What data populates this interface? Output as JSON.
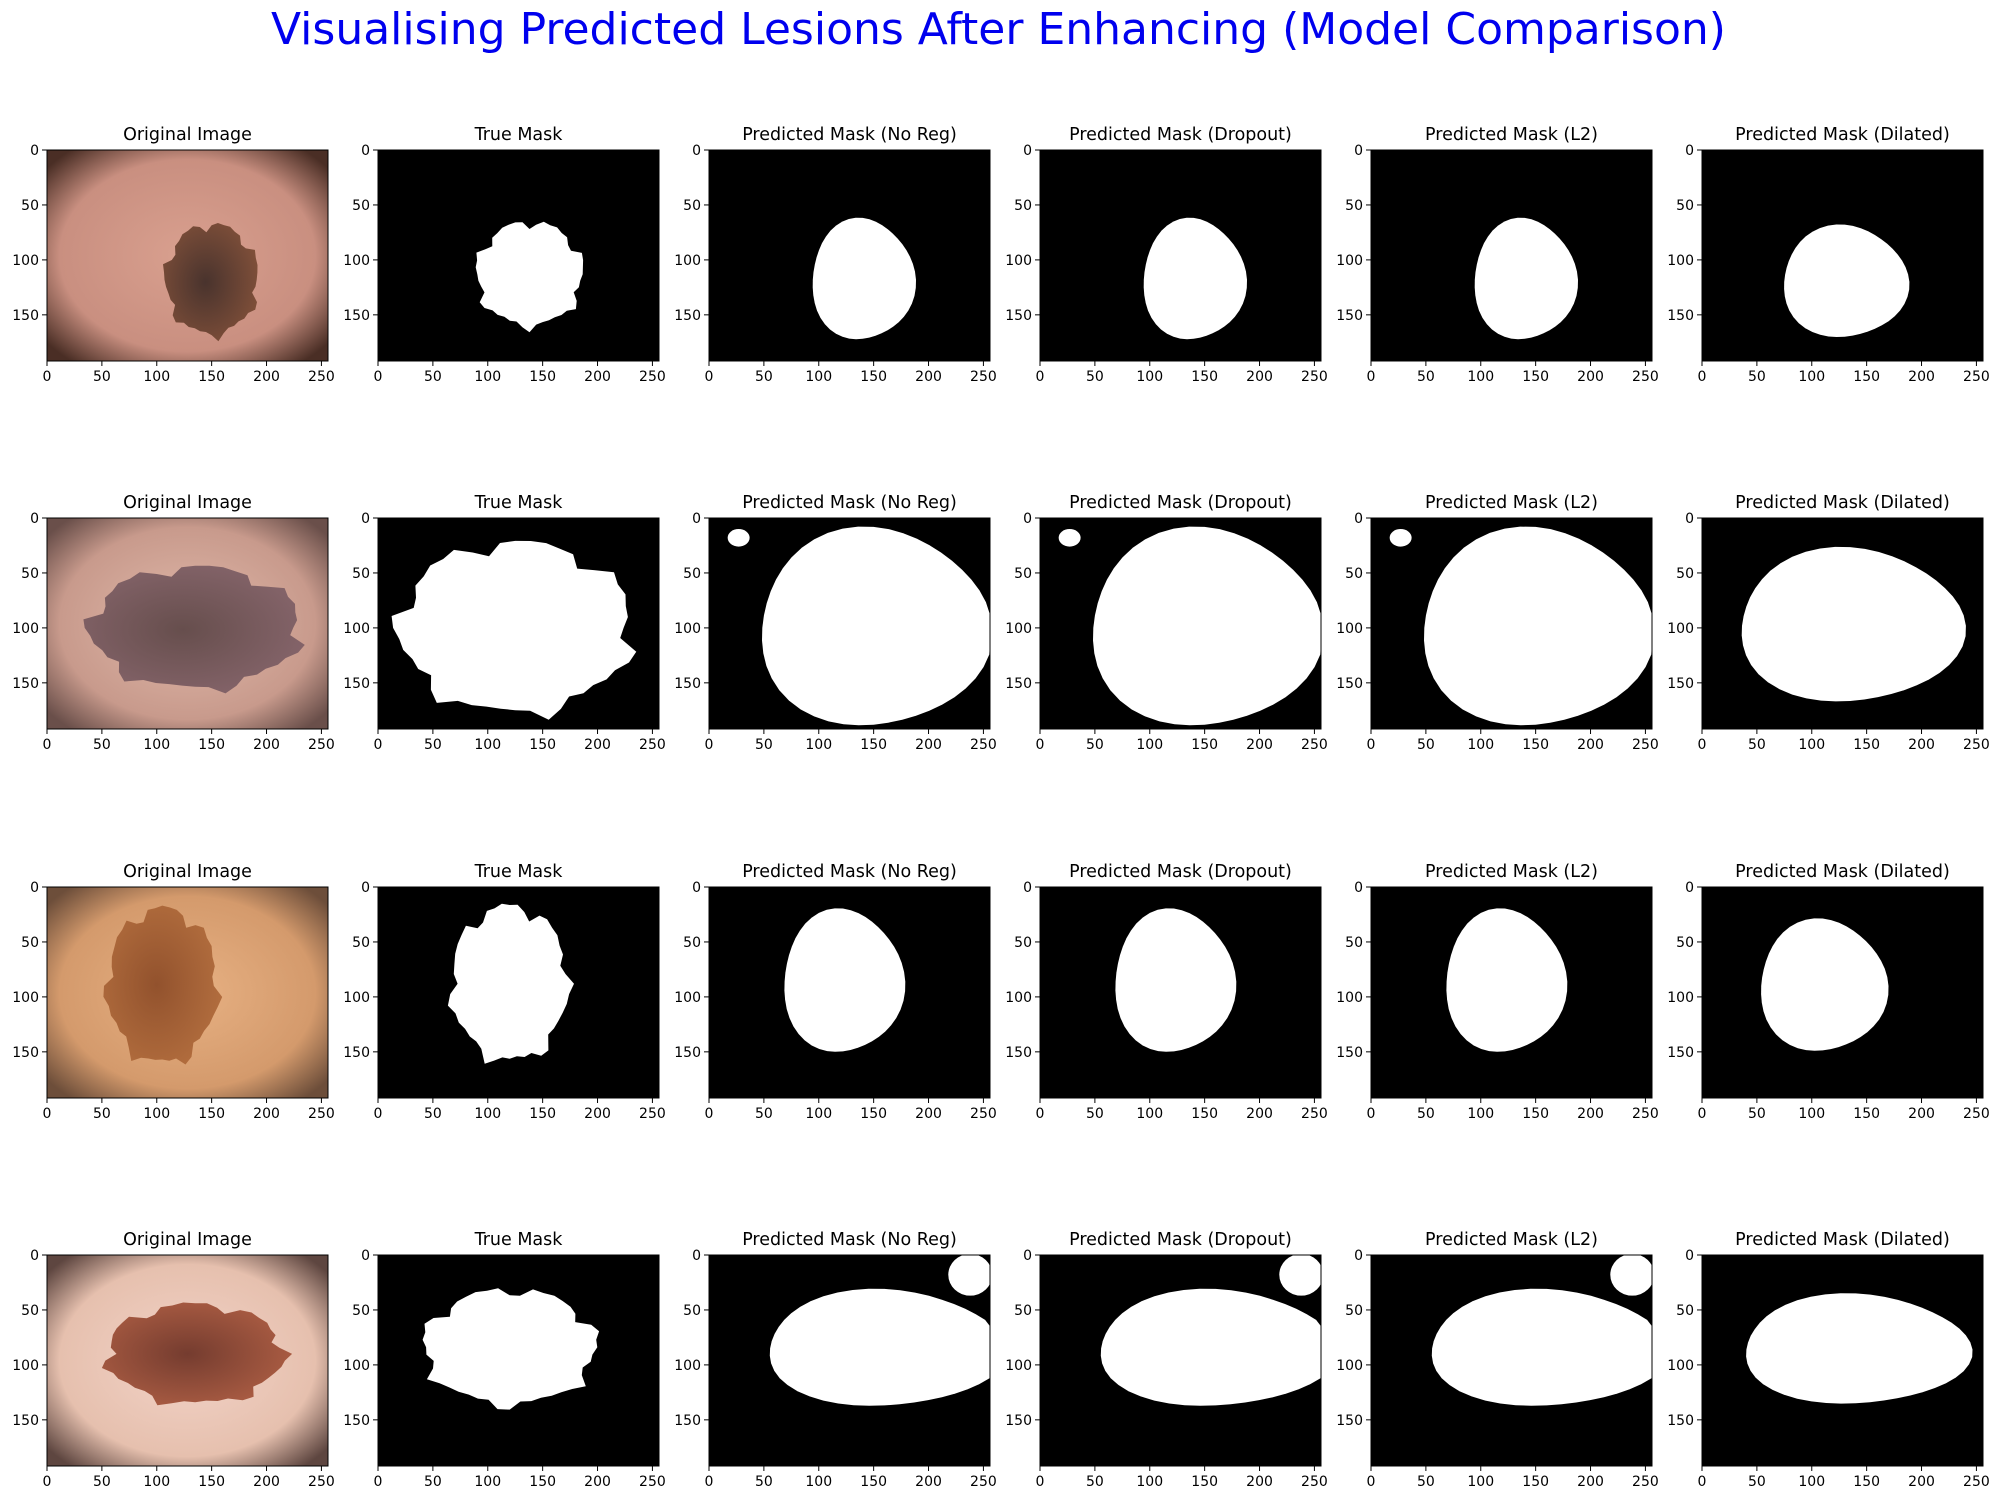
{
  "figure_title": "Visualising Predicted Lesions After Enhancing (Model Comparison)",
  "column_titles": [
    "Original Image",
    "True Mask",
    "Predicted Mask (No Reg)",
    "Predicted Mask (Dropout)",
    "Predicted Mask (L2)",
    "Predicted Mask (Dilated)"
  ],
  "x_ticks": [
    "0",
    "50",
    "100",
    "150",
    "200",
    "250"
  ],
  "y_ticks": [
    "0",
    "50",
    "100",
    "150"
  ],
  "colors": {
    "title": "#0000ee",
    "mask_background": "#000000",
    "mask_foreground": "#ffffff"
  },
  "rows": [
    {
      "skin_colors": [
        "#d9a08f",
        "#c98f80",
        "#4a2e25"
      ],
      "lesion_colors": [
        "#3d2a25",
        "#7a4a33"
      ],
      "lesion": {
        "cx": 150,
        "cy": 118,
        "rx": 42,
        "ry": 50
      },
      "masks": {
        "true": {
          "cx": 138,
          "cy": 113,
          "rx": 48,
          "ry": 47,
          "seed": 3
        },
        "noreg": {
          "cx": 140,
          "cy": 118,
          "rx": 47,
          "ry": 55,
          "seed": 0
        },
        "dropout": {
          "cx": 140,
          "cy": 118,
          "rx": 47,
          "ry": 55,
          "seed": 0
        },
        "l2": {
          "cx": 140,
          "cy": 118,
          "rx": 47,
          "ry": 55,
          "seed": 0
        },
        "dilated": {
          "cx": 130,
          "cy": 120,
          "rx": 57,
          "ry": 51,
          "seed": 0
        }
      }
    },
    {
      "skin_colors": [
        "#e0b9aa",
        "#c89a8c",
        "#6a4f4a"
      ],
      "lesion_colors": [
        "#5c4545",
        "#806068"
      ],
      "lesion": {
        "cx": 135,
        "cy": 100,
        "rx": 95,
        "ry": 55
      },
      "masks": {
        "true": {
          "cx": 125,
          "cy": 100,
          "rx": 105,
          "ry": 77,
          "seed": 5
        },
        "noreg": {
          "cx": 150,
          "cy": 100,
          "rx": 105,
          "ry": 90,
          "seed": 0,
          "extra": {
            "cx": 27,
            "cy": 18,
            "rx": 10,
            "ry": 8
          }
        },
        "dropout": {
          "cx": 150,
          "cy": 100,
          "rx": 105,
          "ry": 90,
          "seed": 0,
          "extra": {
            "cx": 27,
            "cy": 18,
            "rx": 10,
            "ry": 8
          }
        },
        "l2": {
          "cx": 150,
          "cy": 100,
          "rx": 105,
          "ry": 90,
          "seed": 0,
          "extra": {
            "cx": 27,
            "cy": 18,
            "rx": 10,
            "ry": 8
          }
        },
        "dilated": {
          "cx": 135,
          "cy": 98,
          "rx": 102,
          "ry": 70,
          "seed": 0
        }
      }
    },
    {
      "skin_colors": [
        "#e7b183",
        "#d49a6c",
        "#6d4e3a"
      ],
      "lesion_colors": [
        "#8b4a26",
        "#b06a3a"
      ],
      "lesion": {
        "cx": 105,
        "cy": 90,
        "rx": 50,
        "ry": 70
      },
      "masks": {
        "true": {
          "cx": 120,
          "cy": 88,
          "rx": 53,
          "ry": 70,
          "seed": 7
        },
        "noreg": {
          "cx": 122,
          "cy": 86,
          "rx": 55,
          "ry": 65,
          "seed": 0
        },
        "dropout": {
          "cx": 122,
          "cy": 86,
          "rx": 55,
          "ry": 65,
          "seed": 0
        },
        "l2": {
          "cx": 122,
          "cy": 86,
          "rx": 55,
          "ry": 65,
          "seed": 0
        },
        "dilated": {
          "cx": 110,
          "cy": 90,
          "rx": 58,
          "ry": 60,
          "seed": 0
        }
      }
    },
    {
      "skin_colors": [
        "#f2d3c8",
        "#e6c0ae",
        "#5e4640"
      ],
      "lesion_colors": [
        "#6a2f22",
        "#a8553a"
      ],
      "lesion": {
        "cx": 135,
        "cy": 90,
        "rx": 80,
        "ry": 45
      },
      "masks": {
        "true": {
          "cx": 120,
          "cy": 84,
          "rx": 78,
          "ry": 52,
          "seed": 9
        },
        "noreg": {
          "cx": 160,
          "cy": 85,
          "rx": 108,
          "ry": 53,
          "seed": 0,
          "extra": {
            "cx": 238,
            "cy": 18,
            "rx": 20,
            "ry": 19
          }
        },
        "dropout": {
          "cx": 160,
          "cy": 85,
          "rx": 108,
          "ry": 53,
          "seed": 0,
          "extra": {
            "cx": 238,
            "cy": 18,
            "rx": 20,
            "ry": 19
          }
        },
        "l2": {
          "cx": 160,
          "cy": 85,
          "rx": 108,
          "ry": 53,
          "seed": 0,
          "extra": {
            "cx": 238,
            "cy": 18,
            "rx": 20,
            "ry": 19
          }
        },
        "dilated": {
          "cx": 140,
          "cy": 86,
          "rx": 103,
          "ry": 50,
          "seed": 0
        }
      }
    }
  ]
}
